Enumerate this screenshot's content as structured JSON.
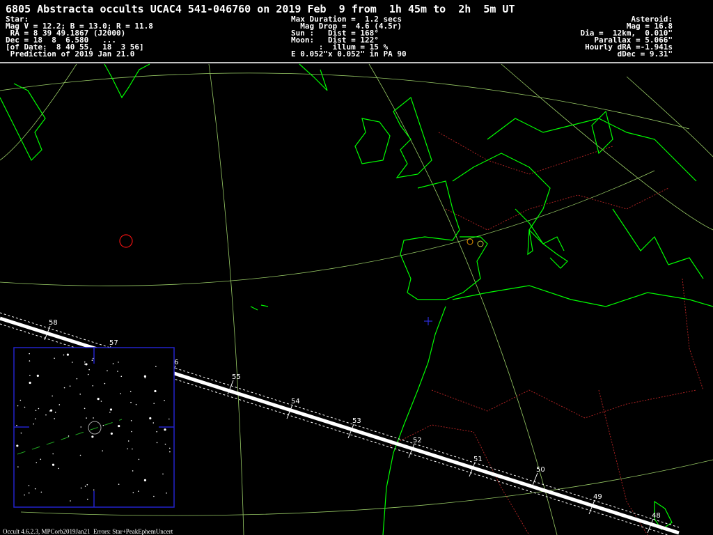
{
  "header": {
    "title": "6805 Abstracta occults UCAC4 541-046760 on 2019 Feb  9 from  1h 45m to  2h  5m UT",
    "star": [
      "Star:",
      "Mag V = 12.2; B = 13.0; R = 11.8",
      " RA = 8 39 49.1867 (J2000)",
      "Dec = 18  8  6.580   ...",
      "[of Date:  8 40 55,  18  3 56]",
      " Prediction of 2019 Jan 21.0"
    ],
    "event": [
      "Max Duration =  1.2 secs",
      "  Mag Drop =  4.6 (4.5r)",
      "Sun :   Dist = 168°",
      "Moon:   Dist = 122°",
      "      :  illum = 15 %",
      "E 0.052\"x 0.052\" in PA 90"
    ],
    "asteroid": [
      "Asteroid:",
      "Mag = 16.8",
      "Dia =  12km,  0.010\"",
      "Parallax = 5.066\"",
      "Hourly dRA =-1.941s",
      "dDec = 9.31\""
    ]
  },
  "path": {
    "minute_labels": [
      "58",
      "57",
      "6",
      "55",
      "54",
      "53",
      "52",
      "51",
      "50",
      "49",
      "48"
    ]
  },
  "footer": "Occult 4.6.2.3, MPCorb2019Jan21  Errors: Star+PeakEphemUncert"
}
